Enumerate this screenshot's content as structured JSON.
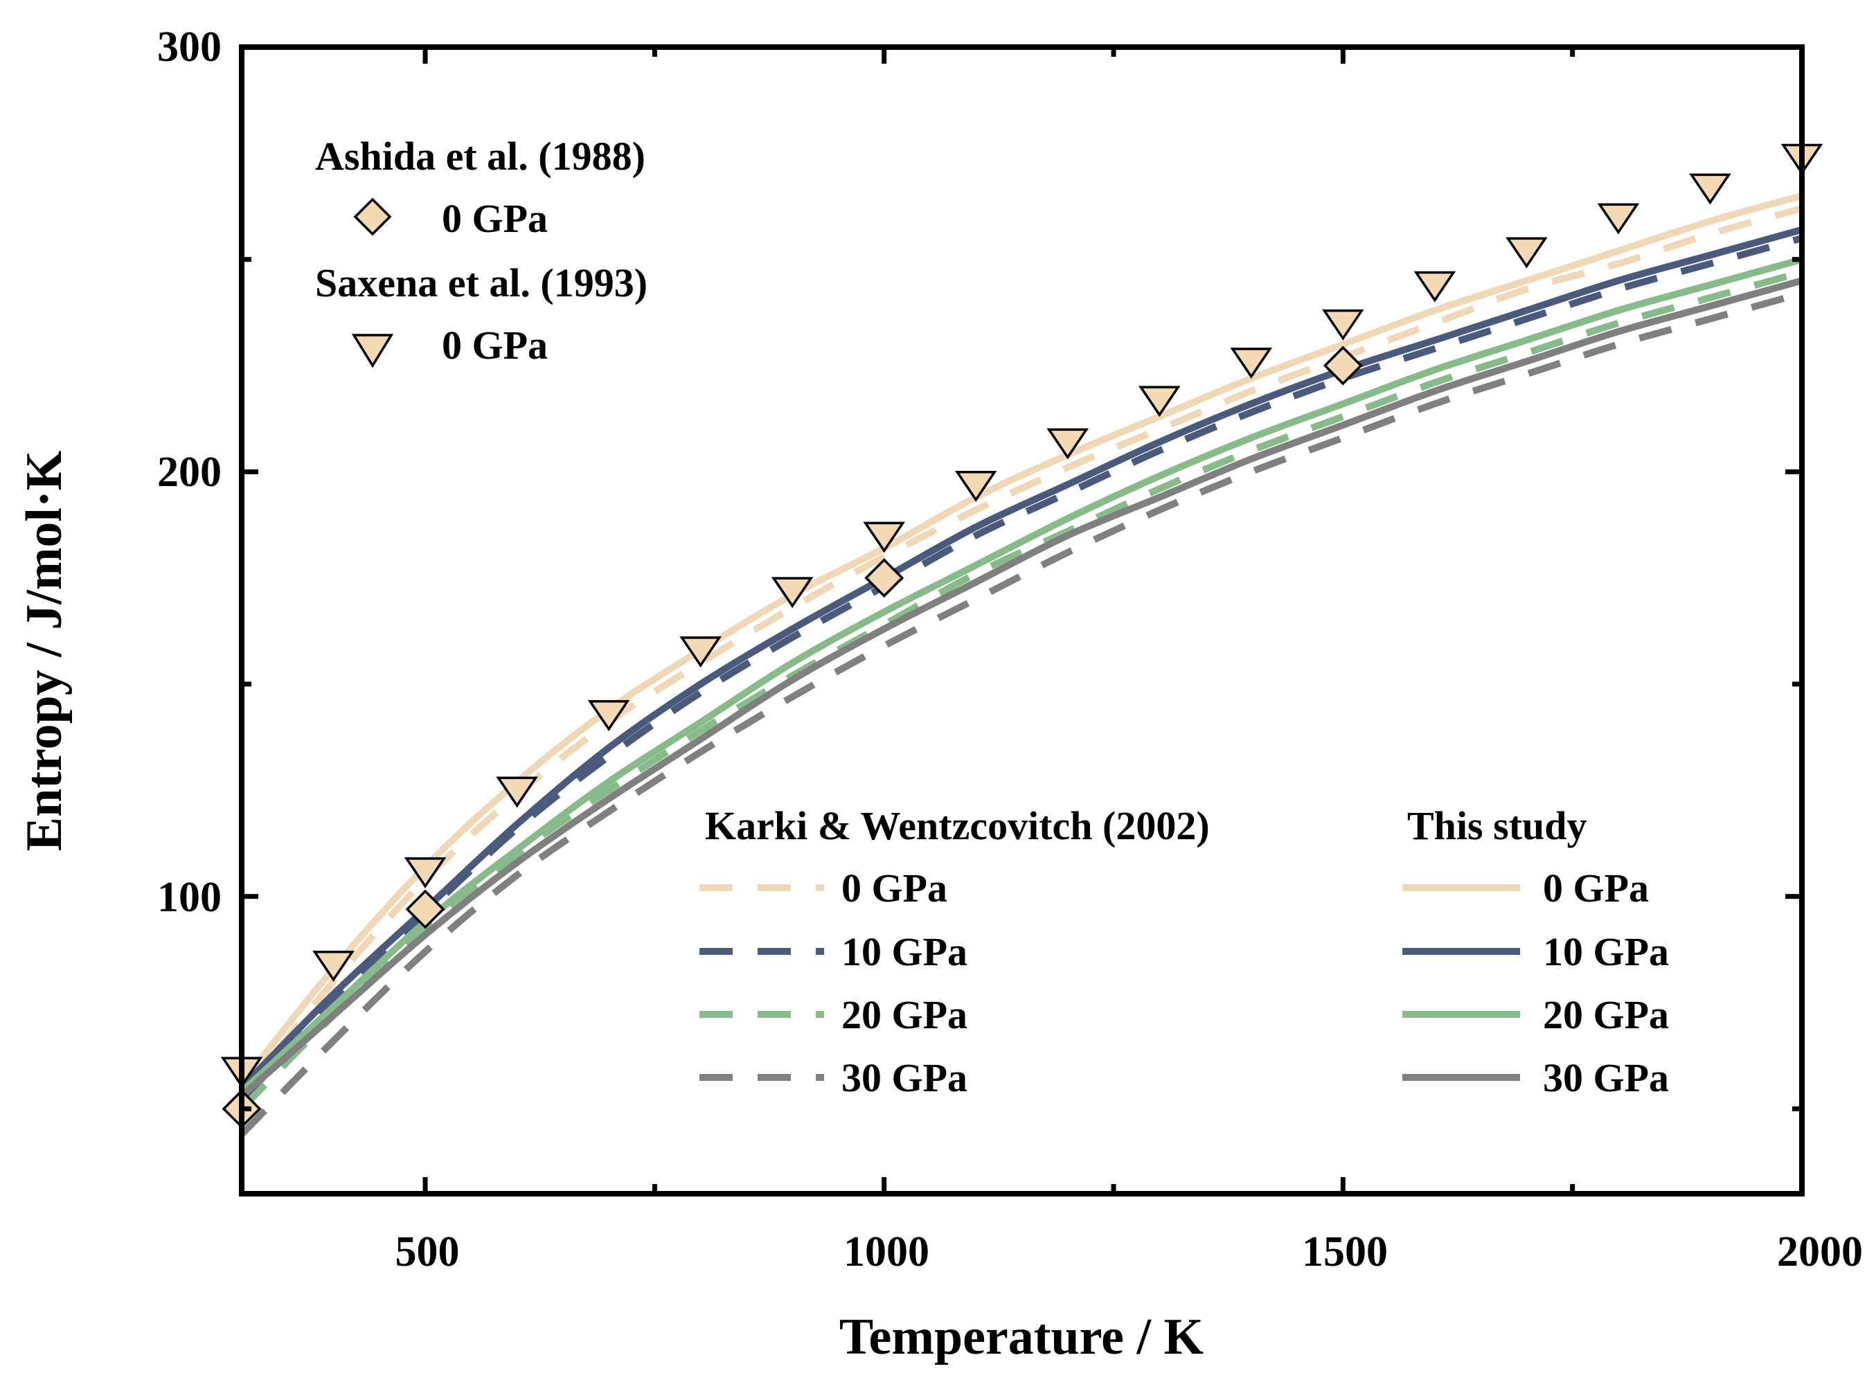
{
  "chart_data": {
    "type": "line",
    "xlabel": "Temperature / K",
    "ylabel": "Entropy / J/mol·K",
    "xlim": [
      300,
      2000
    ],
    "ylim": [
      30,
      300
    ],
    "x_ticks": [
      500,
      1000,
      1500,
      2000
    ],
    "y_ticks": [
      100,
      200,
      300
    ],
    "x_minor_ticks": [
      750,
      1250,
      1750
    ],
    "y_minor_ticks": [
      50,
      150,
      250
    ],
    "grid": false,
    "colors": {
      "p0": "#f0d8b6",
      "p10": "#4a5a7c",
      "p20": "#88bb8a",
      "p30": "#808080",
      "marker_fill": "#f4d9b5",
      "marker_edge": "#000000"
    },
    "x": [
      300,
      400,
      500,
      600,
      700,
      800,
      900,
      1000,
      1100,
      1200,
      1300,
      1400,
      1500,
      1600,
      1700,
      1800,
      1900,
      2000
    ],
    "series": [
      {
        "name": "This study 0 GPa",
        "group": "This study",
        "style": "solid",
        "color": "#f0d8b6",
        "values": [
          56,
          83,
          107,
          127,
          144,
          158,
          171,
          182,
          194,
          204,
          213,
          222,
          230,
          238,
          245,
          252,
          259,
          265
        ]
      },
      {
        "name": "This study 10 GPa",
        "group": "This study",
        "style": "solid",
        "color": "#4a5a7c",
        "values": [
          55,
          77,
          97,
          117,
          135,
          150,
          163,
          175,
          187,
          197,
          207,
          216,
          224,
          231,
          238,
          245,
          251,
          257
        ]
      },
      {
        "name": "This study 20 GPa",
        "group": "This study",
        "style": "solid",
        "color": "#88bb8a",
        "values": [
          54,
          74,
          94,
          111,
          127,
          141,
          155,
          167,
          178,
          189,
          199,
          208,
          216,
          224,
          231,
          238,
          244,
          250
        ]
      },
      {
        "name": "This study 30 GPa",
        "group": "This study",
        "style": "solid",
        "color": "#808080",
        "values": [
          53,
          72,
          91,
          108,
          123,
          137,
          151,
          163,
          174,
          185,
          194,
          203,
          211,
          219,
          226,
          233,
          239,
          245
        ]
      },
      {
        "name": "Karki & Wentzcovitch (2002) 0 GPa",
        "group": "Karki & Wentzcovitch (2002)",
        "style": "dashed",
        "color": "#f0d8b6",
        "values": [
          53,
          80,
          104,
          124,
          141,
          155,
          168,
          180,
          191,
          201,
          210,
          219,
          227,
          235,
          243,
          249,
          256,
          262
        ]
      },
      {
        "name": "Karki & Wentzcovitch (2002) 10 GPa",
        "group": "Karki & Wentzcovitch (2002)",
        "style": "dashed",
        "color": "#4a5a7c",
        "values": [
          52,
          75,
          96,
          116,
          133,
          148,
          161,
          173,
          185,
          195,
          205,
          214,
          222,
          229,
          236,
          243,
          249,
          255
        ]
      },
      {
        "name": "Karki & Wentzcovitch (2002) 20 GPa",
        "group": "Karki & Wentzcovitch (2002)",
        "style": "dashed",
        "color": "#88bb8a",
        "values": [
          50,
          72,
          92,
          110,
          125,
          139,
          152,
          164,
          176,
          186,
          196,
          205,
          213,
          221,
          228,
          235,
          241,
          247
        ]
      },
      {
        "name": "Karki & Wentzcovitch (2002) 30 GPa",
        "group": "Karki & Wentzcovitch (2002)",
        "style": "dashed",
        "color": "#808080",
        "values": [
          44,
          66,
          87,
          105,
          120,
          134,
          147,
          159,
          170,
          181,
          191,
          200,
          208,
          216,
          223,
          230,
          236,
          242
        ]
      }
    ],
    "scatter": [
      {
        "name": "Ashida et al. (1988) 0 GPa",
        "marker": "diamond",
        "x": [
          300,
          500,
          1000,
          1500
        ],
        "y": [
          50,
          97,
          175,
          225
        ]
      },
      {
        "name": "Saxena et al. (1993) 0 GPa",
        "marker": "triangle-down",
        "x": [
          300,
          400,
          500,
          600,
          700,
          800,
          900,
          1000,
          1100,
          1200,
          1300,
          1400,
          1500,
          1600,
          1700,
          1800,
          1900,
          2000
        ],
        "y": [
          59,
          84,
          106,
          125,
          143,
          158,
          172,
          185,
          197,
          207,
          217,
          226,
          235,
          244,
          252,
          260,
          267,
          274
        ]
      }
    ]
  },
  "legend_top": {
    "ashida_title": "Ashida et al. (1988)",
    "ashida_label": "0 GPa",
    "saxena_title": "Saxena et al. (1993)",
    "saxena_label": "0 GPa"
  },
  "legend_bottom": {
    "karki_title": "Karki & Wentzcovitch (2002)",
    "study_title": "This study",
    "labels": [
      "0 GPa",
      "10 GPa",
      "20 GPa",
      "30 GPa"
    ]
  }
}
